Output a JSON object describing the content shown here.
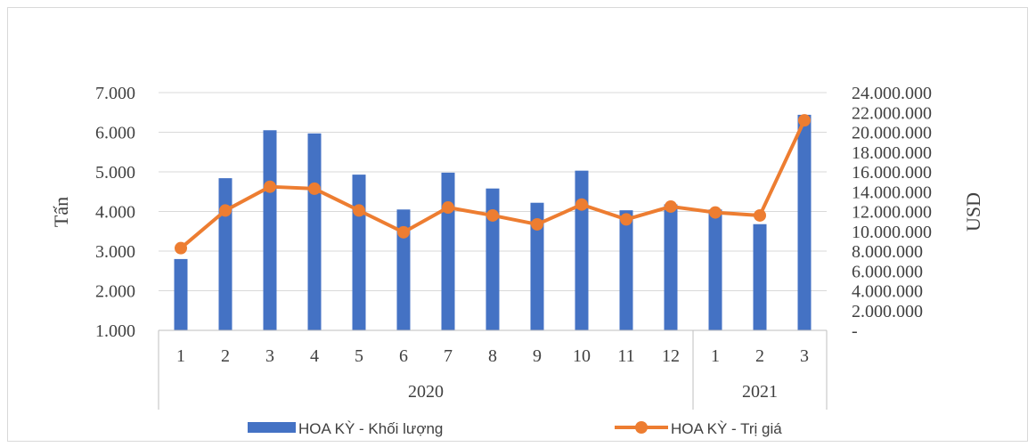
{
  "chart_data": {
    "type": "bar+line",
    "title": "",
    "left_axis": {
      "label": "Tấn",
      "ylim": [
        1000,
        7000
      ],
      "ticks": [
        "1.000",
        "2.000",
        "3.000",
        "4.000",
        "5.000",
        "6.000",
        "7.000"
      ],
      "tick_values": [
        1000,
        2000,
        3000,
        4000,
        5000,
        6000,
        7000
      ]
    },
    "right_axis": {
      "label": "USD",
      "ylim": [
        0,
        24000000
      ],
      "ticks": [
        "-",
        "2.000.000",
        "4.000.000",
        "6.000.000",
        "8.000.000",
        "10.000.000",
        "12.000.000",
        "14.000.000",
        "16.000.000",
        "18.000.000",
        "20.000.000",
        "22.000.000",
        "24.000.000"
      ],
      "tick_values": [
        0,
        2000000,
        4000000,
        6000000,
        8000000,
        10000000,
        12000000,
        14000000,
        16000000,
        18000000,
        20000000,
        22000000,
        24000000
      ]
    },
    "categories": [
      "1",
      "2",
      "3",
      "4",
      "5",
      "6",
      "7",
      "8",
      "9",
      "10",
      "11",
      "12",
      "1",
      "2",
      "3"
    ],
    "groups": [
      {
        "label": "2020",
        "count": 12
      },
      {
        "label": "2021",
        "count": 3
      }
    ],
    "series": [
      {
        "name": "HOA KỲ - Khối lượng",
        "type": "bar",
        "axis": "left",
        "color": "#4472c4",
        "values": [
          2800,
          4840,
          6050,
          5970,
          4930,
          4050,
          4980,
          4580,
          4220,
          5030,
          4030,
          4180,
          4050,
          3680,
          6440
        ]
      },
      {
        "name": "HOA KỲ - Trị giá",
        "type": "line",
        "axis": "right",
        "color": "#ed7d31",
        "values": [
          8300000,
          12100000,
          14500000,
          14300000,
          12100000,
          9900000,
          12400000,
          11600000,
          10700000,
          12700000,
          11200000,
          12500000,
          11900000,
          11600000,
          21200000
        ]
      }
    ],
    "grid": true,
    "legend_position": "bottom"
  }
}
